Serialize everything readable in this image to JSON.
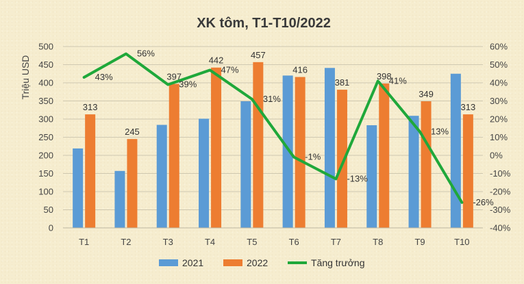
{
  "chart_data": {
    "type": "bar",
    "title": "XK tôm, T1-T10/2022",
    "ylabel": "Triệu USD",
    "categories": [
      "T1",
      "T2",
      "T3",
      "T4",
      "T5",
      "T6",
      "T7",
      "T8",
      "T9",
      "T10"
    ],
    "ylim": [
      0,
      500
    ],
    "y_ticks": [
      "0",
      "50",
      "100",
      "150",
      "200",
      "250",
      "300",
      "350",
      "400",
      "450",
      "500"
    ],
    "y2lim": [
      -40,
      60
    ],
    "y2_ticks": [
      "-40%",
      "-30%",
      "-20%",
      "-10%",
      "0%",
      "10%",
      "20%",
      "30%",
      "40%",
      "50%",
      "60%"
    ],
    "grid": true,
    "legend_position": "bottom",
    "series": [
      {
        "name": "2021",
        "type": "bar",
        "color": "#5b9bd5",
        "values": [
          219,
          157,
          284,
          301,
          349,
          420,
          441,
          283,
          309,
          425
        ]
      },
      {
        "name": "2022",
        "type": "bar",
        "color": "#ed7d31",
        "values": [
          313,
          245,
          397,
          442,
          457,
          416,
          381,
          398,
          349,
          313
        ],
        "labels": [
          "313",
          "245",
          "397",
          "442",
          "457",
          "416",
          "381",
          "398",
          "349",
          "313"
        ]
      },
      {
        "name": "Tăng trưởng",
        "type": "line",
        "axis": "secondary",
        "color": "#1fa83a",
        "values": [
          43,
          56,
          39,
          47,
          31,
          -1,
          -13,
          41,
          13,
          -26
        ],
        "labels": [
          "43%",
          "56%",
          "39%",
          "47%",
          "31%",
          "-1%",
          "-13%",
          "41%",
          "13%",
          "-26%"
        ]
      }
    ]
  }
}
